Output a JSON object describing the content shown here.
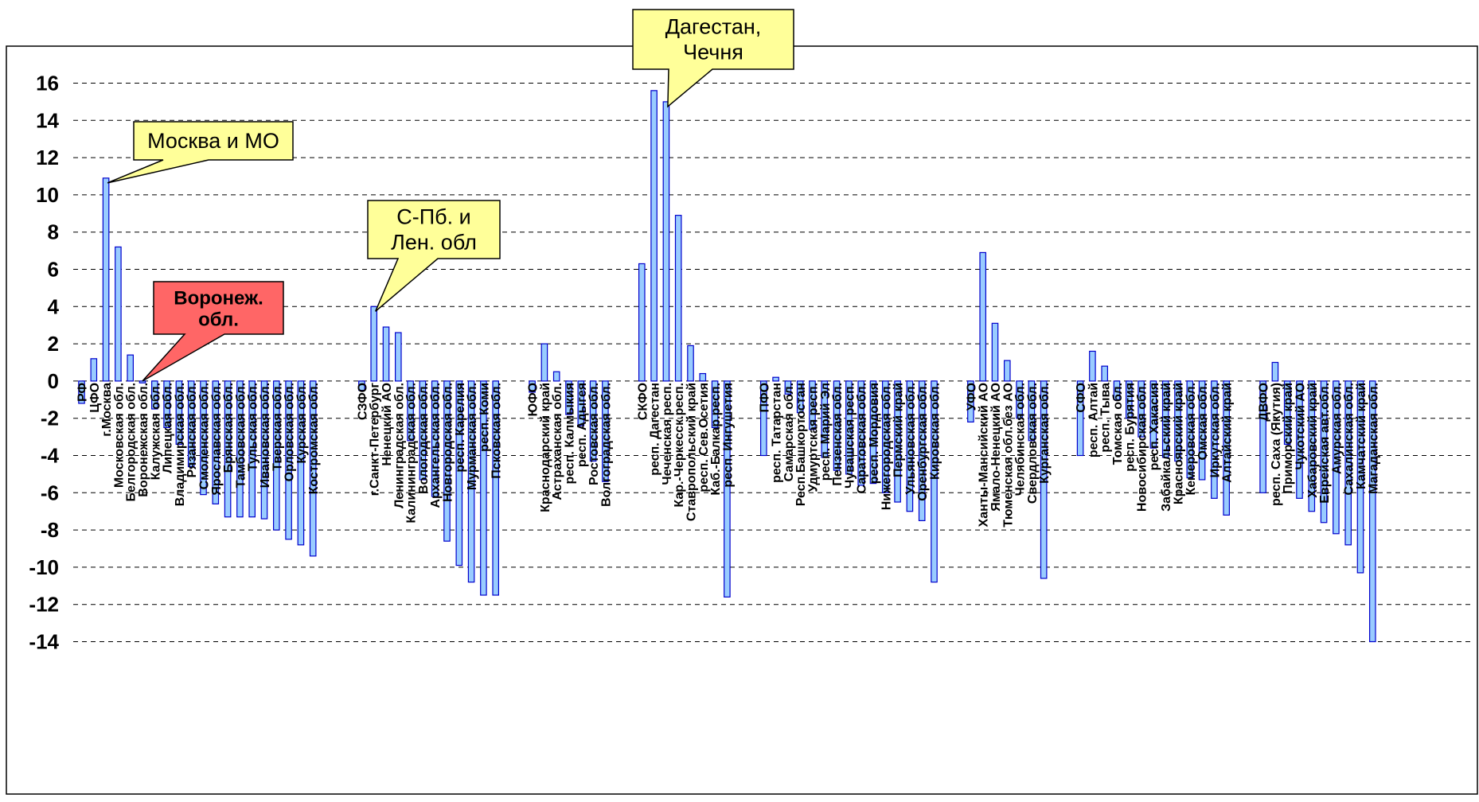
{
  "chart_data": {
    "type": "bar",
    "ylim": [
      -14,
      16
    ],
    "yticks": [
      16,
      14,
      12,
      10,
      8,
      6,
      4,
      2,
      0,
      -2,
      -4,
      -6,
      -8,
      -10,
      -12,
      -14
    ],
    "grid": true,
    "bar_color": "#99ccff",
    "bar_stroke": "#0000cc",
    "categories": [
      "РФ",
      "ЦФО",
      "г.Москва",
      "Московская обл.",
      "Белгородская обл.",
      "Воронежская обл.",
      "Калужская обл.",
      "Липецкая обл.",
      "Владимирская обл.",
      "Рязанская обл.",
      "Смоленская обл.",
      "Ярославская обл.",
      "Брянская обл.",
      "Тамбовская обл.",
      "Тульская обл.",
      "Ивановская обл.",
      "Тверская обл.",
      "Орловская обл.",
      "Курская обл.",
      "Костромская обл.",
      "",
      "",
      "",
      "СЗФО",
      "г.Санкт-Петербург",
      "Ненецкий АО",
      "Ленинградская обл.",
      "Калининградская обл.",
      "Вологодская обл.",
      "Архангельская обл.",
      "Новгородская обл.",
      "респ. Карелия",
      "Мурманская обл.",
      "респ. Коми",
      "Псковская обл.",
      "",
      "",
      "ЮФО",
      "Краснодарский край",
      "Астраханская обл.",
      "респ. Калмыкия",
      "респ. Адыгея",
      "Ростовская обл.",
      "Волгоградская обл.",
      "",
      "",
      "СКФО",
      "респ. Дагестан",
      "Чеченская респ.",
      "Кар.-Черкесск.респ.",
      "Ставропольский край",
      "респ. Сев.Осетия",
      "Каб.-Балкар.респ.",
      "респ. Ингушетия",
      "",
      "",
      "ПФО",
      "респ. Татарстан",
      "Самарская обл.",
      "Респ.Башкортостан",
      "Удмуртская респ.",
      "респ. Марий Эл",
      "Пензенская обл.",
      "Чувашская респ.",
      "Саратовская обл.",
      "респ. Мордовия",
      "Нижегородская обл.",
      "Пермский край",
      "Ульяновская обл.",
      "Оренбургская обл.",
      "Кировская обл.",
      "",
      "",
      "УФО",
      "Ханты-Мансийский АО",
      "Ямало-Ненецкий АО",
      "Тюменская обл.без АО",
      "Челябинская обл.",
      "Свердловская обл.",
      "Курганская обл.",
      "",
      "",
      "СФО",
      "респ. Алтай",
      "респ. Тыва",
      "Томская обл.",
      "респ. Бурятия",
      "Новосибирская обл.",
      "респ. Хакасия",
      "Забайкальский край",
      "Красноярский край",
      "Кемеровская обл.",
      "Омская обл.",
      "Иркутская обл.",
      "Алтайский край",
      "",
      "",
      "ДВФО",
      "респ. Саха (Якутия)",
      "Приморский край",
      "Чукотский АО",
      "Хабаровский край",
      "Еврейская авт.обл.",
      "Амурская обл.",
      "Сахалинская обл.",
      "Камчатский край",
      "Магаданская обл."
    ],
    "values": [
      -1.2,
      1.2,
      10.9,
      7.2,
      1.4,
      -0.1,
      -1.5,
      -2.5,
      -3.4,
      -4.6,
      -6.1,
      -6.6,
      -7.3,
      -7.3,
      -7.3,
      -7.4,
      -8.0,
      -8.5,
      -8.8,
      -9.4,
      null,
      null,
      null,
      -0.5,
      4.0,
      2.9,
      2.6,
      -3.2,
      -5.3,
      -6.2,
      -8.6,
      -9.9,
      -10.8,
      -11.5,
      -11.5,
      null,
      null,
      -0.6,
      2.0,
      0.5,
      -1.8,
      -2.4,
      -4.3,
      -5.4,
      null,
      null,
      6.3,
      15.6,
      15.0,
      8.9,
      1.9,
      0.4,
      -2.5,
      -11.6,
      null,
      null,
      -4.0,
      0.2,
      -0.7,
      -1.7,
      -2.6,
      -4.1,
      -4.8,
      -5.0,
      -5.6,
      -5.5,
      -6.0,
      -6.5,
      -7.0,
      -7.5,
      -10.8,
      null,
      null,
      -2.2,
      6.9,
      3.1,
      1.1,
      -2.0,
      -3.2,
      -10.6,
      null,
      null,
      -4.0,
      1.6,
      0.8,
      -1.0,
      -2.0,
      -3.0,
      -3.6,
      -4.1,
      -4.3,
      -5.2,
      -5.3,
      -6.3,
      -7.2,
      null,
      null,
      -6.0,
      1.0,
      -3.4,
      -6.3,
      -7.0,
      -7.6,
      -8.2,
      -8.8,
      -10.3,
      -14.0
    ],
    "annotations": [
      {
        "text": [
          "Москва и МО"
        ],
        "style": "callout",
        "fill": "#ffff99",
        "target_category": "г.Москва",
        "target_value": 10.9
      },
      {
        "text": [
          "Воронеж.",
          "обл."
        ],
        "style": "callout-bold",
        "fill": "#ff6666",
        "target_category": "Воронежская обл.",
        "target_value": 0
      },
      {
        "text": [
          "С-Пб. и",
          "Лен. обл"
        ],
        "style": "callout",
        "fill": "#ffff99",
        "target_category": "г.Санкт-Петербург",
        "target_value": 4.0
      },
      {
        "text": [
          "Дагестан,",
          "Чечня"
        ],
        "style": "callout",
        "fill": "#ffff99",
        "target_category": "Чеченская респ.",
        "target_value": 15.0
      }
    ]
  }
}
